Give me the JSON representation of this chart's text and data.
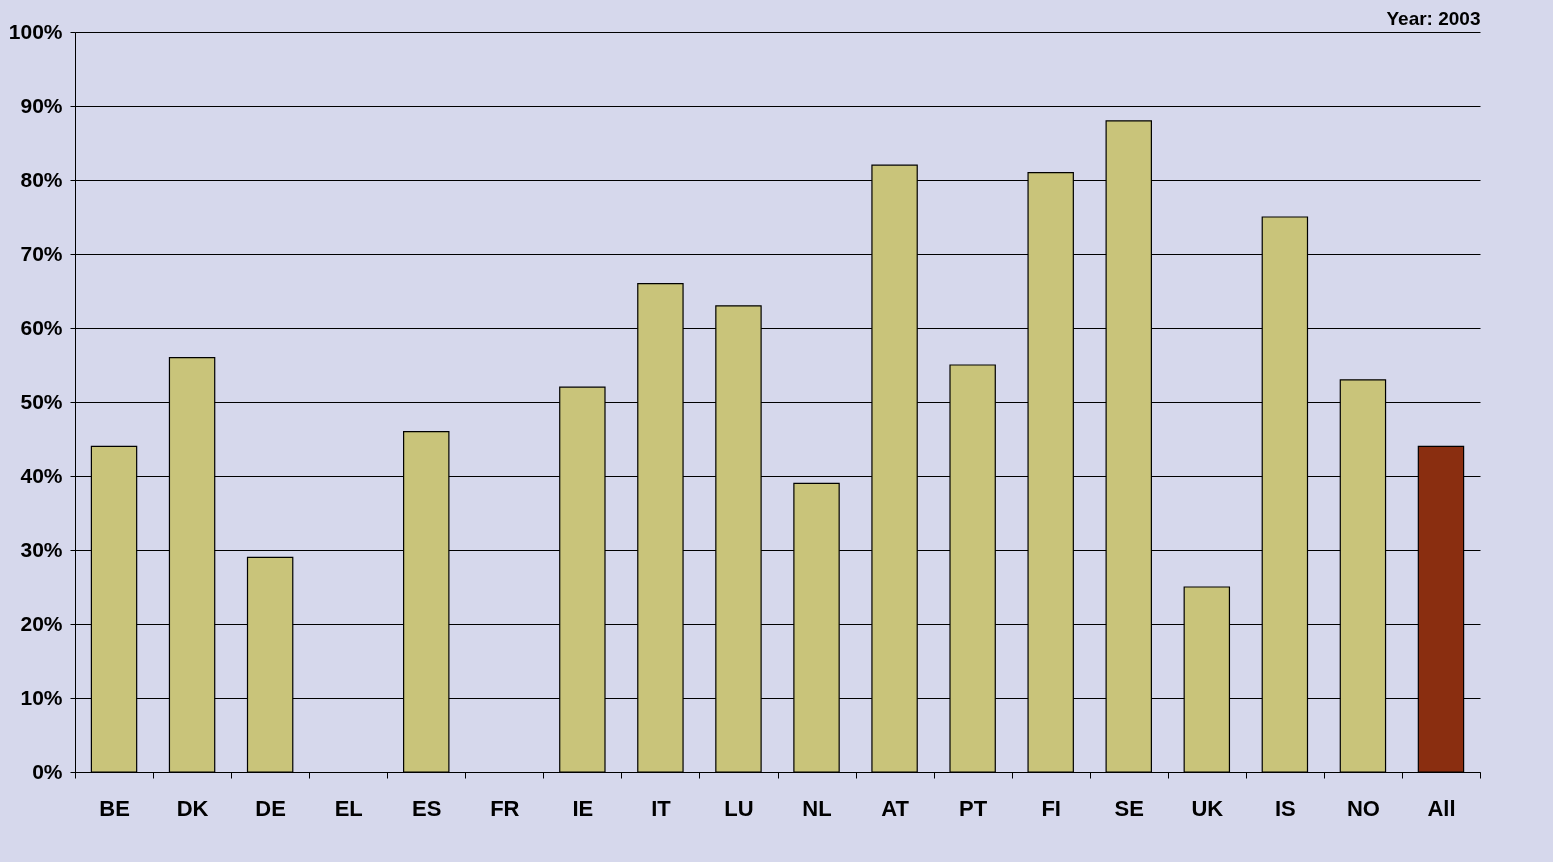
{
  "chart_data": {
    "type": "bar",
    "categories": [
      "BE",
      "DK",
      "DE",
      "EL",
      "ES",
      "FR",
      "IE",
      "IT",
      "LU",
      "NL",
      "AT",
      "PT",
      "FI",
      "SE",
      "UK",
      "IS",
      "NO",
      "All"
    ],
    "values": [
      44,
      56,
      29,
      null,
      46,
      null,
      52,
      66,
      63,
      39,
      82,
      55,
      81,
      88,
      25,
      75,
      53,
      44
    ],
    "colors": [
      "#c9c47a",
      "#c9c47a",
      "#c9c47a",
      "#c9c47a",
      "#c9c47a",
      "#c9c47a",
      "#c9c47a",
      "#c9c47a",
      "#c9c47a",
      "#c9c47a",
      "#c9c47a",
      "#c9c47a",
      "#c9c47a",
      "#c9c47a",
      "#c9c47a",
      "#c9c47a",
      "#c9c47a",
      "#8a2e10"
    ],
    "ylim": [
      0,
      100
    ],
    "yticks": [
      {
        "value": 0,
        "label": "0%"
      },
      {
        "value": 10,
        "label": "10%"
      },
      {
        "value": 20,
        "label": "20%"
      },
      {
        "value": 30,
        "label": "30%"
      },
      {
        "value": 40,
        "label": "40%"
      },
      {
        "value": 50,
        "label": "50%"
      },
      {
        "value": 60,
        "label": "60%"
      },
      {
        "value": 70,
        "label": "70%"
      },
      {
        "value": 80,
        "label": "80%"
      },
      {
        "value": 90,
        "label": "90%"
      },
      {
        "value": 100,
        "label": "100%"
      }
    ],
    "grid": "y",
    "annotations": [
      "Year: 2003"
    ]
  }
}
